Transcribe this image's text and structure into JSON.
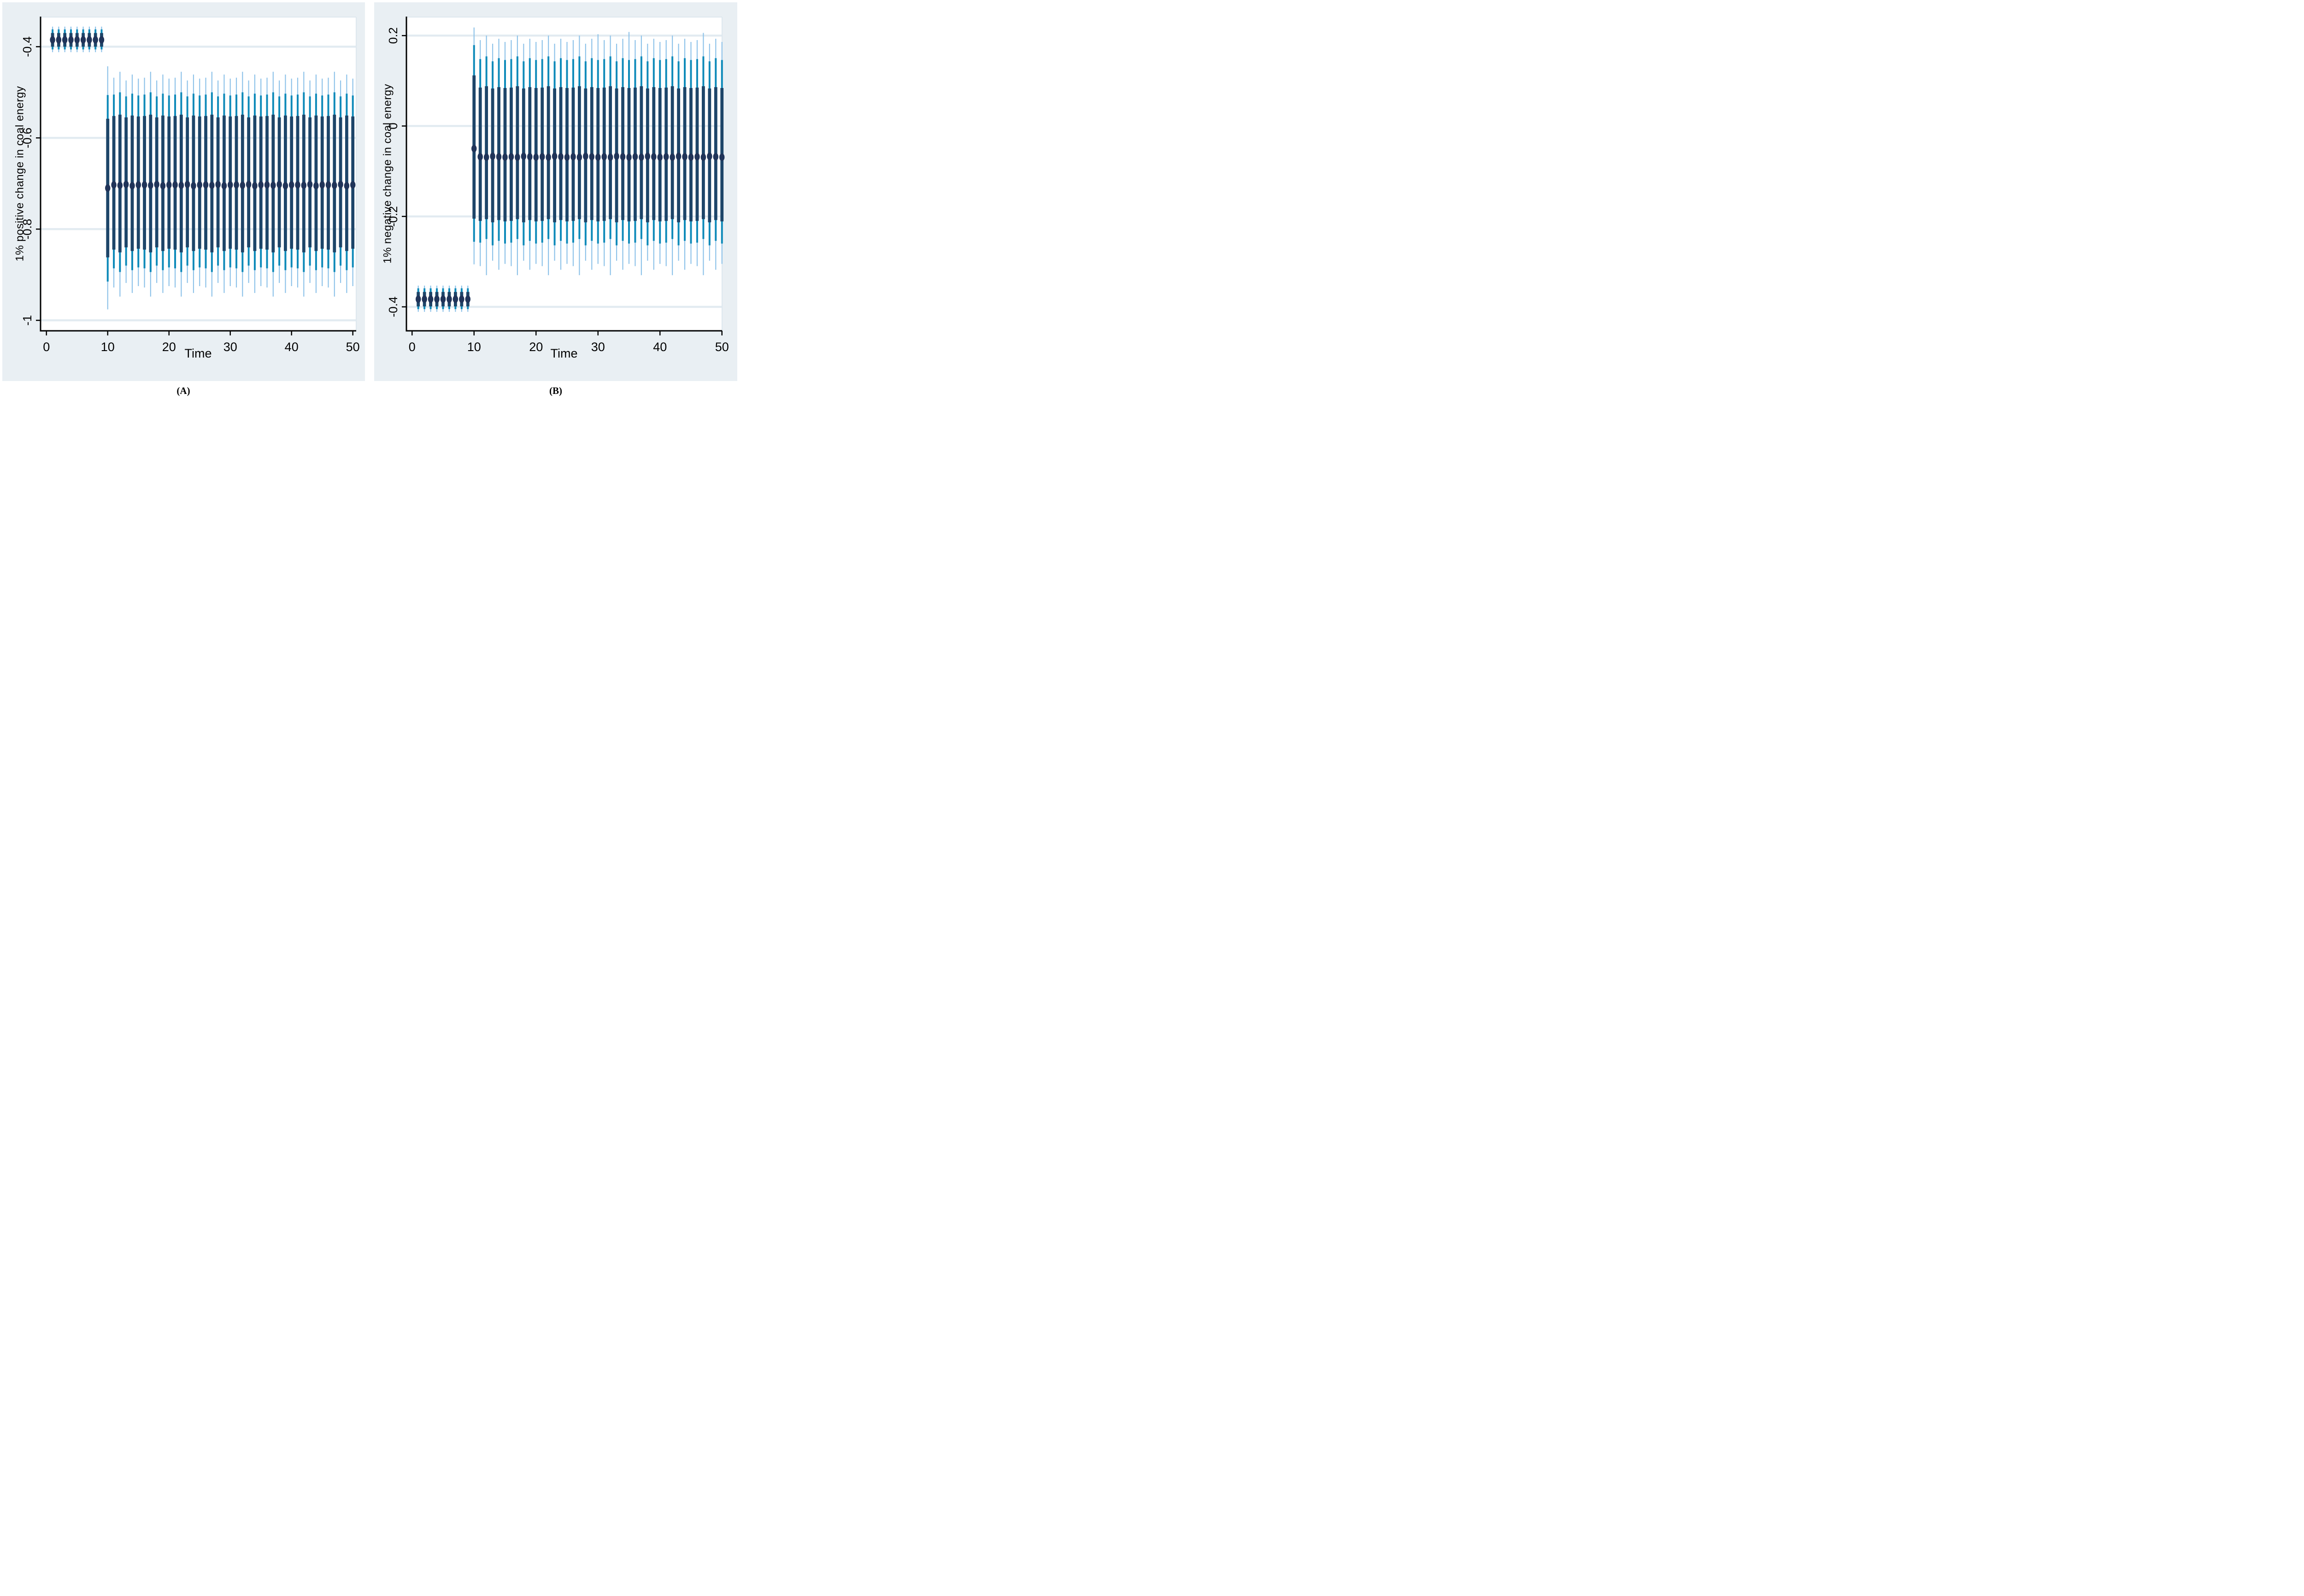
{
  "page": {
    "background": "#ffffff"
  },
  "colors": {
    "panel_bg": "#e9eff3",
    "plot_bg": "#ffffff",
    "gridline": "#e2ebf1",
    "frame_light": "#dde7ee",
    "axis": "#000000",
    "outer_whisker": "#8fc3e9",
    "mid_whisker": "#0e8ab9",
    "inner_bar": "#1d4569",
    "point_marker": "#203459"
  },
  "chart_data": [
    {
      "type": "errorbar",
      "caption": "(A)",
      "ylabel": "1% positive change in coal energy",
      "xlabel": "Time",
      "x_ticks": [
        {
          "v": 0,
          "label": "0"
        },
        {
          "v": 10,
          "label": "10"
        },
        {
          "v": 20,
          "label": "20"
        },
        {
          "v": 30,
          "label": "30"
        },
        {
          "v": 40,
          "label": "40"
        },
        {
          "v": 50,
          "label": "50"
        }
      ],
      "y_ticks": [
        {
          "v": -0.4,
          "label": "-0.4"
        },
        {
          "v": -0.6,
          "label": "-0.6"
        },
        {
          "v": -0.8,
          "label": "-0.8"
        },
        {
          "v": -1,
          "label": "-1"
        }
      ],
      "xlim": [
        -0.96,
        50.55
      ],
      "ylim": [
        -1.023,
        -0.335
      ],
      "grid": true,
      "columns": [
        "time",
        "point",
        "inner_lo",
        "inner_hi",
        "mid_lo",
        "mid_hi",
        "outer_lo",
        "outer_hi"
      ],
      "rows": [
        [
          1,
          -0.385,
          -0.4,
          -0.37,
          -0.406,
          -0.362,
          -0.412,
          -0.356
        ],
        [
          2,
          -0.385,
          -0.4,
          -0.37,
          -0.406,
          -0.362,
          -0.412,
          -0.356
        ],
        [
          3,
          -0.385,
          -0.4,
          -0.37,
          -0.406,
          -0.362,
          -0.412,
          -0.356
        ],
        [
          4,
          -0.385,
          -0.4,
          -0.37,
          -0.406,
          -0.362,
          -0.412,
          -0.356
        ],
        [
          5,
          -0.385,
          -0.4,
          -0.37,
          -0.406,
          -0.362,
          -0.412,
          -0.356
        ],
        [
          6,
          -0.385,
          -0.4,
          -0.37,
          -0.406,
          -0.362,
          -0.412,
          -0.356
        ],
        [
          7,
          -0.385,
          -0.4,
          -0.37,
          -0.406,
          -0.362,
          -0.412,
          -0.356
        ],
        [
          8,
          -0.385,
          -0.4,
          -0.37,
          -0.406,
          -0.362,
          -0.412,
          -0.356
        ],
        [
          9,
          -0.385,
          -0.4,
          -0.37,
          -0.406,
          -0.362,
          -0.412,
          -0.356
        ],
        [
          10,
          -0.71,
          -0.862,
          -0.558,
          -0.915,
          -0.506,
          -0.976,
          -0.443
        ],
        [
          11,
          -0.703,
          -0.845,
          -0.552,
          -0.886,
          -0.505,
          -0.928,
          -0.468
        ],
        [
          12,
          -0.704,
          -0.851,
          -0.549,
          -0.894,
          -0.5,
          -0.948,
          -0.455
        ],
        [
          13,
          -0.702,
          -0.84,
          -0.555,
          -0.88,
          -0.509,
          -0.918,
          -0.474
        ],
        [
          14,
          -0.705,
          -0.848,
          -0.551,
          -0.89,
          -0.503,
          -0.94,
          -0.461
        ],
        [
          15,
          -0.703,
          -0.843,
          -0.553,
          -0.884,
          -0.507,
          -0.925,
          -0.47
        ],
        [
          16,
          -0.703,
          -0.845,
          -0.552,
          -0.886,
          -0.505,
          -0.928,
          -0.468
        ],
        [
          17,
          -0.704,
          -0.851,
          -0.549,
          -0.894,
          -0.5,
          -0.948,
          -0.455
        ],
        [
          18,
          -0.702,
          -0.84,
          -0.555,
          -0.88,
          -0.509,
          -0.918,
          -0.474
        ],
        [
          19,
          -0.705,
          -0.848,
          -0.551,
          -0.89,
          -0.503,
          -0.94,
          -0.461
        ],
        [
          20,
          -0.703,
          -0.843,
          -0.553,
          -0.884,
          -0.507,
          -0.925,
          -0.47
        ],
        [
          21,
          -0.703,
          -0.845,
          -0.552,
          -0.886,
          -0.505,
          -0.928,
          -0.468
        ],
        [
          22,
          -0.704,
          -0.851,
          -0.549,
          -0.894,
          -0.5,
          -0.948,
          -0.455
        ],
        [
          23,
          -0.702,
          -0.84,
          -0.555,
          -0.88,
          -0.509,
          -0.918,
          -0.474
        ],
        [
          24,
          -0.705,
          -0.848,
          -0.551,
          -0.89,
          -0.503,
          -0.94,
          -0.461
        ],
        [
          25,
          -0.703,
          -0.843,
          -0.553,
          -0.884,
          -0.507,
          -0.925,
          -0.47
        ],
        [
          26,
          -0.703,
          -0.845,
          -0.552,
          -0.886,
          -0.505,
          -0.928,
          -0.468
        ],
        [
          27,
          -0.704,
          -0.851,
          -0.549,
          -0.894,
          -0.5,
          -0.948,
          -0.455
        ],
        [
          28,
          -0.702,
          -0.84,
          -0.555,
          -0.88,
          -0.509,
          -0.918,
          -0.474
        ],
        [
          29,
          -0.705,
          -0.848,
          -0.551,
          -0.89,
          -0.503,
          -0.94,
          -0.461
        ],
        [
          30,
          -0.703,
          -0.843,
          -0.553,
          -0.884,
          -0.507,
          -0.925,
          -0.47
        ],
        [
          31,
          -0.703,
          -0.845,
          -0.552,
          -0.886,
          -0.505,
          -0.928,
          -0.468
        ],
        [
          32,
          -0.704,
          -0.851,
          -0.549,
          -0.894,
          -0.5,
          -0.948,
          -0.455
        ],
        [
          33,
          -0.702,
          -0.84,
          -0.555,
          -0.88,
          -0.509,
          -0.918,
          -0.474
        ],
        [
          34,
          -0.705,
          -0.848,
          -0.551,
          -0.89,
          -0.503,
          -0.94,
          -0.461
        ],
        [
          35,
          -0.703,
          -0.843,
          -0.553,
          -0.884,
          -0.507,
          -0.925,
          -0.47
        ],
        [
          36,
          -0.703,
          -0.845,
          -0.552,
          -0.886,
          -0.505,
          -0.928,
          -0.468
        ],
        [
          37,
          -0.704,
          -0.851,
          -0.549,
          -0.894,
          -0.5,
          -0.948,
          -0.455
        ],
        [
          38,
          -0.702,
          -0.84,
          -0.555,
          -0.88,
          -0.509,
          -0.918,
          -0.474
        ],
        [
          39,
          -0.705,
          -0.848,
          -0.551,
          -0.89,
          -0.503,
          -0.94,
          -0.461
        ],
        [
          40,
          -0.703,
          -0.843,
          -0.553,
          -0.884,
          -0.507,
          -0.925,
          -0.47
        ],
        [
          41,
          -0.703,
          -0.845,
          -0.552,
          -0.886,
          -0.505,
          -0.928,
          -0.468
        ],
        [
          42,
          -0.704,
          -0.851,
          -0.549,
          -0.894,
          -0.5,
          -0.948,
          -0.455
        ],
        [
          43,
          -0.702,
          -0.84,
          -0.555,
          -0.88,
          -0.509,
          -0.918,
          -0.474
        ],
        [
          44,
          -0.705,
          -0.848,
          -0.551,
          -0.89,
          -0.503,
          -0.94,
          -0.461
        ],
        [
          45,
          -0.703,
          -0.843,
          -0.553,
          -0.884,
          -0.507,
          -0.925,
          -0.47
        ],
        [
          46,
          -0.703,
          -0.845,
          -0.552,
          -0.886,
          -0.505,
          -0.928,
          -0.468
        ],
        [
          47,
          -0.704,
          -0.851,
          -0.549,
          -0.894,
          -0.5,
          -0.948,
          -0.455
        ],
        [
          48,
          -0.702,
          -0.84,
          -0.555,
          -0.88,
          -0.509,
          -0.918,
          -0.474
        ],
        [
          49,
          -0.705,
          -0.848,
          -0.551,
          -0.89,
          -0.503,
          -0.94,
          -0.461
        ],
        [
          50,
          -0.703,
          -0.843,
          -0.553,
          -0.884,
          -0.507,
          -0.925,
          -0.47
        ]
      ]
    },
    {
      "type": "errorbar",
      "caption": "(B)",
      "ylabel": "1% negative change in coal energy",
      "xlabel": "Time",
      "x_ticks": [
        {
          "v": 0,
          "label": "0"
        },
        {
          "v": 10,
          "label": "10"
        },
        {
          "v": 20,
          "label": "20"
        },
        {
          "v": 30,
          "label": "30"
        },
        {
          "v": 40,
          "label": "40"
        },
        {
          "v": 50,
          "label": "50"
        }
      ],
      "y_ticks": [
        {
          "v": 0.2,
          "label": "0.2"
        },
        {
          "v": 0,
          "label": "0"
        },
        {
          "v": -0.2,
          "label": "-0.2"
        },
        {
          "v": -0.4,
          "label": "-0.4"
        }
      ],
      "xlim": [
        -0.91,
        50.02
      ],
      "ylim": [
        -0.453,
        0.241
      ],
      "grid": true,
      "columns": [
        "time",
        "point",
        "inner_lo",
        "inner_hi",
        "mid_lo",
        "mid_hi",
        "outer_lo",
        "outer_hi"
      ],
      "rows": [
        [
          1,
          -0.383,
          -0.399,
          -0.367,
          -0.405,
          -0.359,
          -0.411,
          -0.353
        ],
        [
          2,
          -0.383,
          -0.399,
          -0.367,
          -0.405,
          -0.359,
          -0.411,
          -0.353
        ],
        [
          3,
          -0.383,
          -0.399,
          -0.367,
          -0.405,
          -0.359,
          -0.411,
          -0.353
        ],
        [
          4,
          -0.383,
          -0.399,
          -0.367,
          -0.405,
          -0.359,
          -0.411,
          -0.353
        ],
        [
          5,
          -0.383,
          -0.399,
          -0.367,
          -0.405,
          -0.359,
          -0.411,
          -0.353
        ],
        [
          6,
          -0.383,
          -0.399,
          -0.367,
          -0.405,
          -0.359,
          -0.411,
          -0.353
        ],
        [
          7,
          -0.383,
          -0.399,
          -0.367,
          -0.405,
          -0.359,
          -0.411,
          -0.353
        ],
        [
          8,
          -0.383,
          -0.399,
          -0.367,
          -0.405,
          -0.359,
          -0.411,
          -0.353
        ],
        [
          9,
          -0.383,
          -0.399,
          -0.367,
          -0.405,
          -0.359,
          -0.411,
          -0.353
        ],
        [
          10,
          -0.05,
          -0.205,
          0.112,
          -0.256,
          0.179,
          -0.306,
          0.218
        ],
        [
          11,
          -0.068,
          -0.21,
          0.085,
          -0.258,
          0.148,
          -0.31,
          0.19
        ],
        [
          12,
          -0.069,
          -0.206,
          0.088,
          -0.25,
          0.154,
          -0.33,
          0.2
        ],
        [
          13,
          -0.067,
          -0.213,
          0.083,
          -0.264,
          0.143,
          -0.298,
          0.182
        ],
        [
          14,
          -0.068,
          -0.208,
          0.086,
          -0.254,
          0.15,
          -0.318,
          0.193
        ],
        [
          15,
          -0.069,
          -0.211,
          0.084,
          -0.26,
          0.146,
          -0.305,
          0.186
        ],
        [
          16,
          -0.068,
          -0.21,
          0.085,
          -0.258,
          0.148,
          -0.31,
          0.19
        ],
        [
          17,
          -0.069,
          -0.206,
          0.088,
          -0.25,
          0.154,
          -0.33,
          0.2
        ],
        [
          18,
          -0.067,
          -0.213,
          0.083,
          -0.264,
          0.143,
          -0.298,
          0.182
        ],
        [
          19,
          -0.068,
          -0.208,
          0.086,
          -0.254,
          0.15,
          -0.318,
          0.193
        ],
        [
          20,
          -0.069,
          -0.211,
          0.084,
          -0.26,
          0.146,
          -0.305,
          0.186
        ],
        [
          21,
          -0.068,
          -0.21,
          0.085,
          -0.258,
          0.148,
          -0.31,
          0.19
        ],
        [
          22,
          -0.069,
          -0.206,
          0.088,
          -0.25,
          0.154,
          -0.33,
          0.2
        ],
        [
          23,
          -0.067,
          -0.213,
          0.083,
          -0.264,
          0.143,
          -0.298,
          0.182
        ],
        [
          24,
          -0.068,
          -0.208,
          0.086,
          -0.254,
          0.15,
          -0.318,
          0.193
        ],
        [
          25,
          -0.069,
          -0.211,
          0.084,
          -0.26,
          0.146,
          -0.305,
          0.186
        ],
        [
          26,
          -0.068,
          -0.21,
          0.085,
          -0.258,
          0.148,
          -0.31,
          0.19
        ],
        [
          27,
          -0.069,
          -0.206,
          0.088,
          -0.25,
          0.154,
          -0.33,
          0.2
        ],
        [
          28,
          -0.067,
          -0.213,
          0.083,
          -0.264,
          0.143,
          -0.298,
          0.182
        ],
        [
          29,
          -0.068,
          -0.208,
          0.086,
          -0.254,
          0.15,
          -0.318,
          0.193
        ],
        [
          30,
          -0.069,
          -0.211,
          0.084,
          -0.26,
          0.146,
          -0.305,
          0.203
        ],
        [
          31,
          -0.068,
          -0.21,
          0.085,
          -0.258,
          0.148,
          -0.31,
          0.19
        ],
        [
          32,
          -0.069,
          -0.206,
          0.088,
          -0.25,
          0.154,
          -0.33,
          0.2
        ],
        [
          33,
          -0.067,
          -0.213,
          0.083,
          -0.264,
          0.143,
          -0.298,
          0.182
        ],
        [
          34,
          -0.068,
          -0.208,
          0.086,
          -0.254,
          0.15,
          -0.318,
          0.193
        ],
        [
          35,
          -0.069,
          -0.211,
          0.084,
          -0.26,
          0.146,
          -0.305,
          0.208
        ],
        [
          36,
          -0.068,
          -0.21,
          0.085,
          -0.258,
          0.148,
          -0.31,
          0.19
        ],
        [
          37,
          -0.069,
          -0.206,
          0.088,
          -0.25,
          0.154,
          -0.33,
          0.2
        ],
        [
          38,
          -0.067,
          -0.213,
          0.083,
          -0.264,
          0.143,
          -0.298,
          0.182
        ],
        [
          39,
          -0.068,
          -0.208,
          0.086,
          -0.254,
          0.15,
          -0.318,
          0.193
        ],
        [
          40,
          -0.069,
          -0.211,
          0.084,
          -0.26,
          0.146,
          -0.305,
          0.186
        ],
        [
          41,
          -0.068,
          -0.21,
          0.085,
          -0.258,
          0.148,
          -0.31,
          0.19
        ],
        [
          42,
          -0.069,
          -0.206,
          0.088,
          -0.25,
          0.154,
          -0.33,
          0.2
        ],
        [
          43,
          -0.067,
          -0.213,
          0.083,
          -0.264,
          0.143,
          -0.298,
          0.182
        ],
        [
          44,
          -0.068,
          -0.208,
          0.086,
          -0.254,
          0.15,
          -0.318,
          0.193
        ],
        [
          45,
          -0.069,
          -0.211,
          0.084,
          -0.26,
          0.146,
          -0.305,
          0.186
        ],
        [
          46,
          -0.068,
          -0.21,
          0.085,
          -0.258,
          0.148,
          -0.31,
          0.19
        ],
        [
          47,
          -0.069,
          -0.206,
          0.088,
          -0.25,
          0.154,
          -0.33,
          0.206
        ],
        [
          48,
          -0.067,
          -0.213,
          0.083,
          -0.264,
          0.143,
          -0.298,
          0.182
        ],
        [
          49,
          -0.068,
          -0.208,
          0.086,
          -0.254,
          0.15,
          -0.318,
          0.193
        ],
        [
          50,
          -0.069,
          -0.211,
          0.084,
          -0.26,
          0.146,
          -0.305,
          0.186
        ]
      ]
    }
  ]
}
